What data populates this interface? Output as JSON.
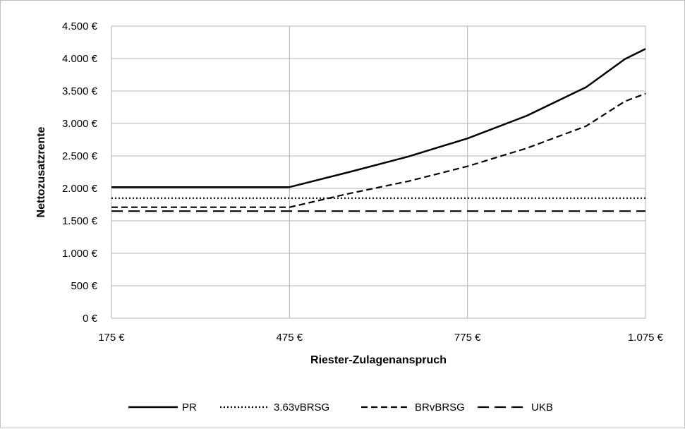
{
  "chart_data": {
    "type": "line",
    "xlabel": "Riester-Zulagenanspruch",
    "ylabel": "Nettozusatzrente",
    "xlim": [
      175,
      1075
    ],
    "ylim": [
      0,
      4500
    ],
    "x_ticks": [
      {
        "value": 175,
        "label": "175 €"
      },
      {
        "value": 475,
        "label": "475 €"
      },
      {
        "value": 775,
        "label": "775 €"
      },
      {
        "value": 1075,
        "label": "1.075 €"
      }
    ],
    "y_ticks": [
      {
        "value": 0,
        "label": "0 €"
      },
      {
        "value": 500,
        "label": "500 €"
      },
      {
        "value": 1000,
        "label": "1.000 €"
      },
      {
        "value": 1500,
        "label": "1.500 €"
      },
      {
        "value": 2000,
        "label": "2.000 €"
      },
      {
        "value": 2500,
        "label": "2.500 €"
      },
      {
        "value": 3000,
        "label": "3.000 €"
      },
      {
        "value": 3500,
        "label": "3.500 €"
      },
      {
        "value": 4000,
        "label": "4.000 €"
      },
      {
        "value": 4500,
        "label": "4.500 €"
      }
    ],
    "grid": true,
    "legend_position": "bottom",
    "series": [
      {
        "name": "PR",
        "style": "solid",
        "x": [
          175,
          475,
          575,
          675,
          775,
          875,
          975,
          1040,
          1075
        ],
        "y": [
          2020,
          2020,
          2250,
          2490,
          2770,
          3120,
          3560,
          3990,
          4150
        ]
      },
      {
        "name": "3.63vBRSG",
        "style": "dotted",
        "x": [
          175,
          1075
        ],
        "y": [
          1850,
          1850
        ]
      },
      {
        "name": "BRvBRSG",
        "style": "short-dash",
        "x": [
          175,
          475,
          575,
          675,
          775,
          875,
          975,
          1040,
          1075
        ],
        "y": [
          1710,
          1710,
          1920,
          2110,
          2340,
          2620,
          2960,
          3340,
          3460
        ]
      },
      {
        "name": "UKB",
        "style": "long-dash",
        "x": [
          175,
          1075
        ],
        "y": [
          1650,
          1650
        ]
      }
    ]
  }
}
